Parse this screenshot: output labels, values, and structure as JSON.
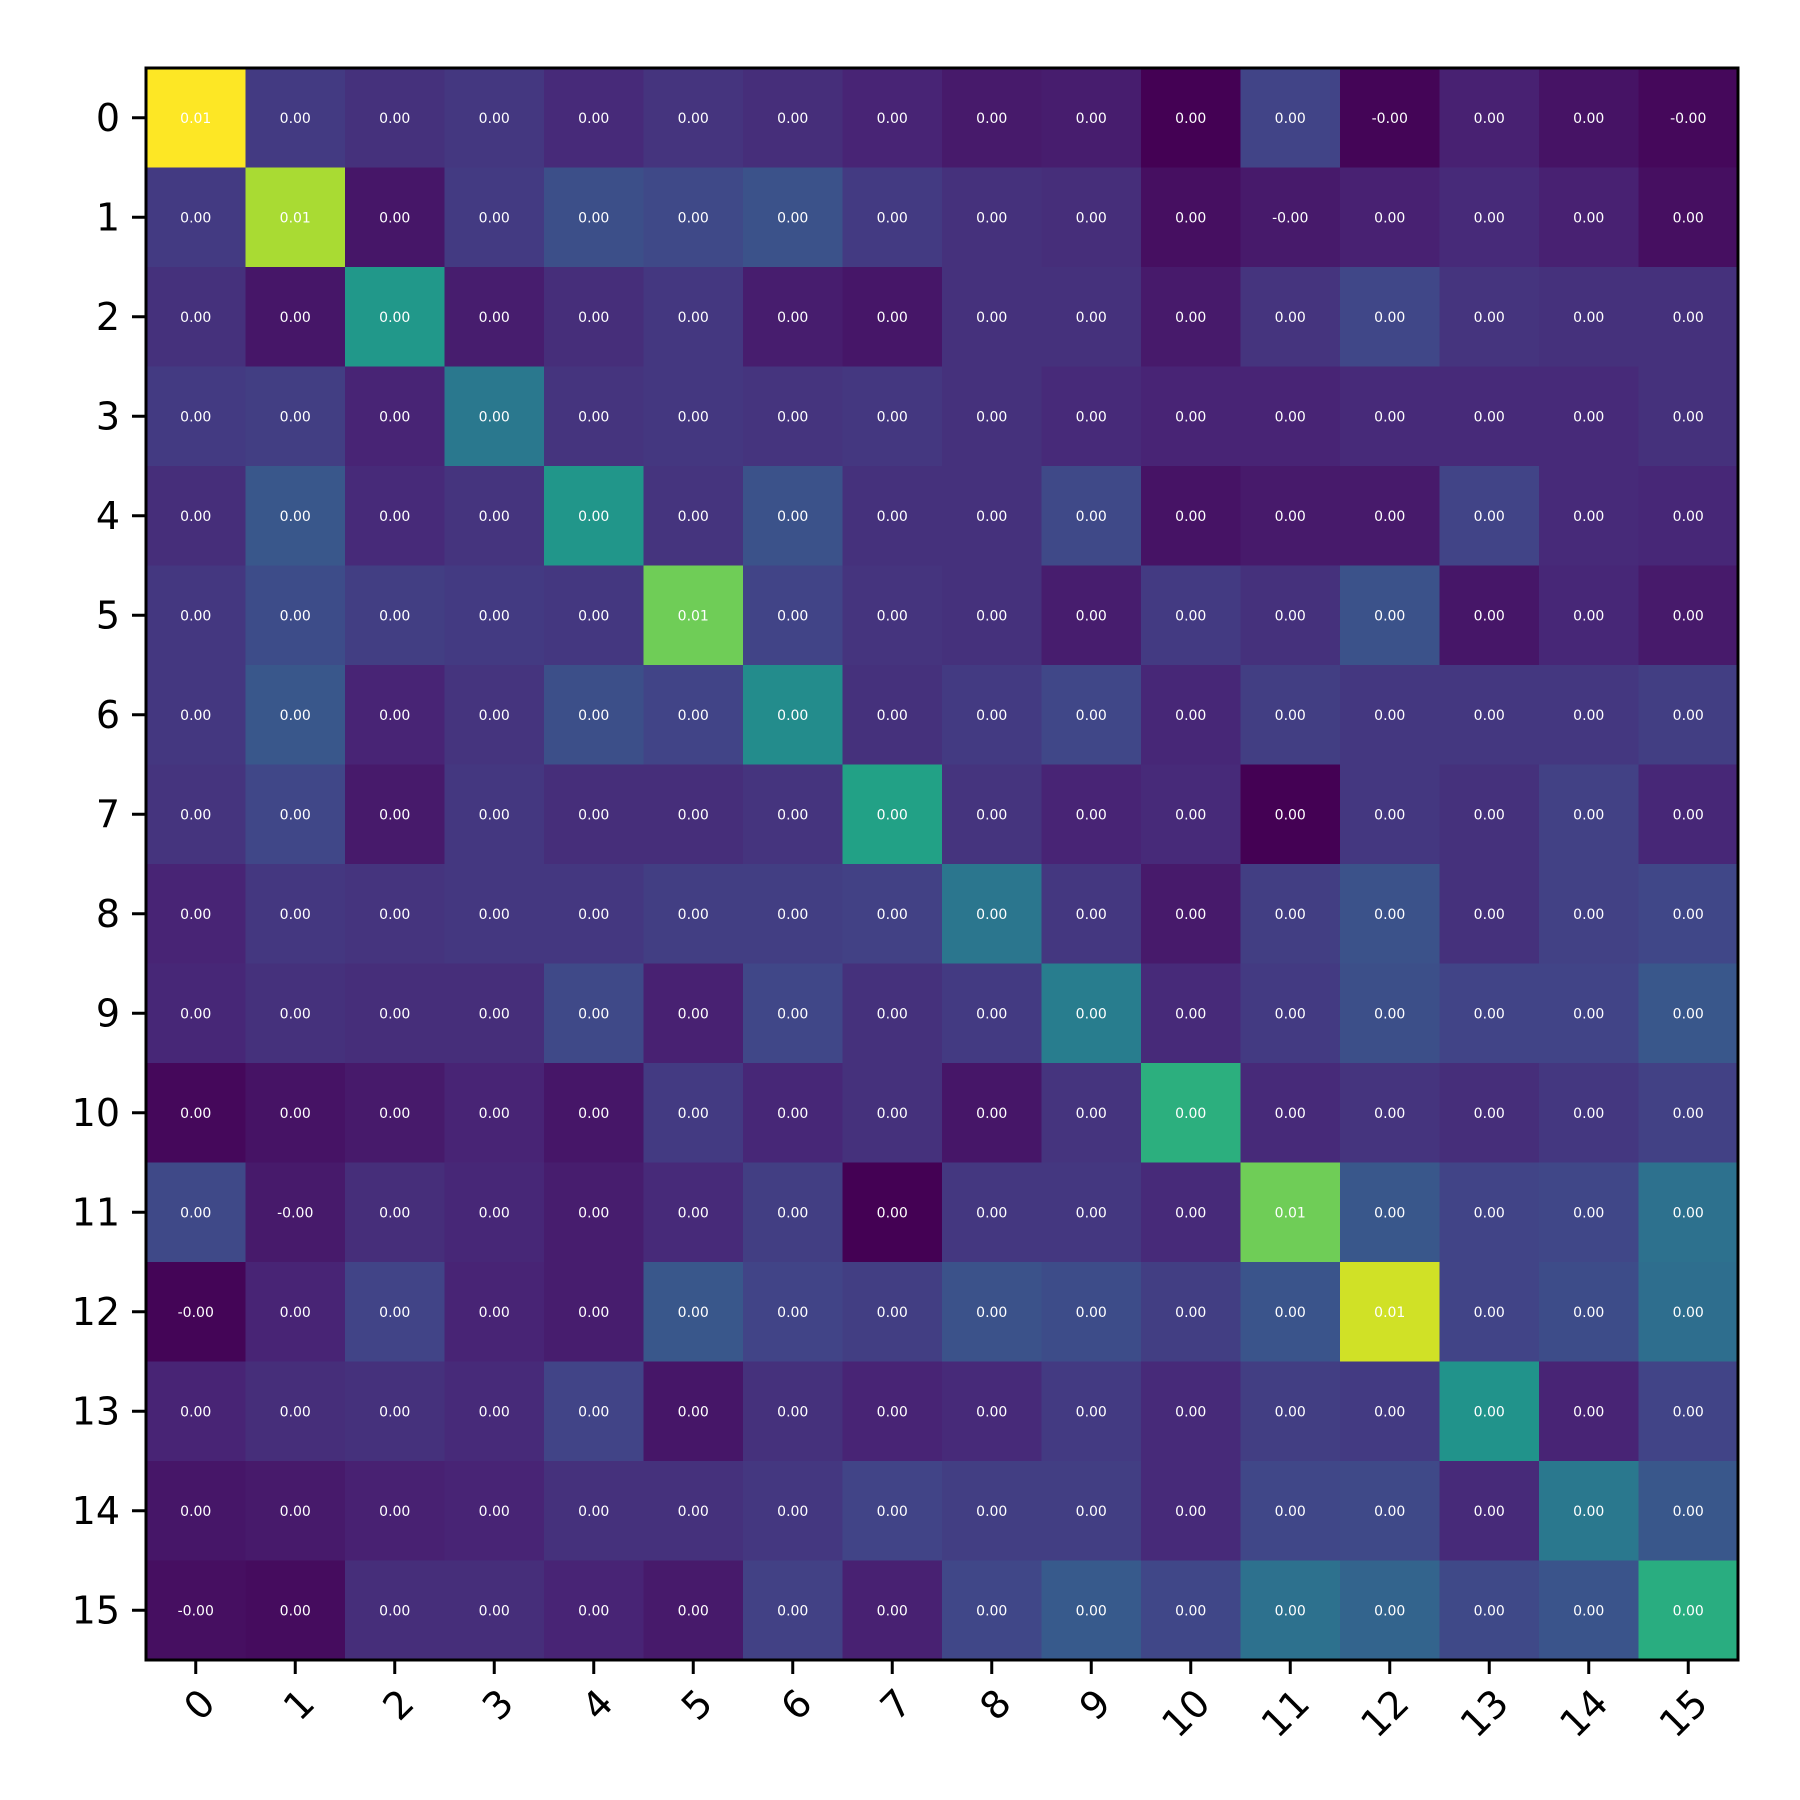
{
  "chart_data": {
    "type": "heatmap",
    "title": "",
    "xlabel": "",
    "ylabel": "",
    "x_tick_labels": [
      "0",
      "1",
      "2",
      "3",
      "4",
      "5",
      "6",
      "7",
      "8",
      "9",
      "10",
      "11",
      "12",
      "13",
      "14",
      "15"
    ],
    "y_tick_labels": [
      "0",
      "1",
      "2",
      "3",
      "4",
      "5",
      "6",
      "7",
      "8",
      "9",
      "10",
      "11",
      "12",
      "13",
      "14",
      "15"
    ],
    "colormap": "viridis",
    "x_tick_rotation_deg": 45,
    "grid": false,
    "colorbar": false,
    "intensity": [
      [
        1.0,
        0.17,
        0.14,
        0.16,
        0.12,
        0.15,
        0.13,
        0.1,
        0.07,
        0.08,
        0.0,
        0.2,
        0.01,
        0.09,
        0.05,
        0.02
      ],
      [
        0.17,
        0.87,
        0.06,
        0.17,
        0.24,
        0.22,
        0.25,
        0.17,
        0.14,
        0.13,
        0.04,
        0.07,
        0.09,
        0.12,
        0.09,
        0.04
      ],
      [
        0.14,
        0.06,
        0.53,
        0.08,
        0.13,
        0.16,
        0.08,
        0.06,
        0.14,
        0.14,
        0.07,
        0.15,
        0.21,
        0.15,
        0.14,
        0.14
      ],
      [
        0.17,
        0.18,
        0.1,
        0.4,
        0.15,
        0.16,
        0.15,
        0.16,
        0.14,
        0.12,
        0.1,
        0.1,
        0.12,
        0.12,
        0.12,
        0.14
      ],
      [
        0.13,
        0.27,
        0.12,
        0.15,
        0.52,
        0.15,
        0.25,
        0.14,
        0.14,
        0.22,
        0.05,
        0.07,
        0.07,
        0.2,
        0.12,
        0.11
      ],
      [
        0.16,
        0.23,
        0.18,
        0.17,
        0.16,
        0.78,
        0.2,
        0.15,
        0.14,
        0.08,
        0.17,
        0.14,
        0.25,
        0.06,
        0.11,
        0.07
      ],
      [
        0.16,
        0.27,
        0.1,
        0.15,
        0.24,
        0.2,
        0.48,
        0.14,
        0.17,
        0.21,
        0.11,
        0.18,
        0.16,
        0.16,
        0.16,
        0.18
      ],
      [
        0.15,
        0.21,
        0.07,
        0.16,
        0.13,
        0.13,
        0.15,
        0.57,
        0.15,
        0.1,
        0.12,
        0.0,
        0.16,
        0.14,
        0.19,
        0.11
      ],
      [
        0.1,
        0.16,
        0.15,
        0.16,
        0.16,
        0.18,
        0.18,
        0.19,
        0.39,
        0.16,
        0.07,
        0.18,
        0.25,
        0.14,
        0.19,
        0.21
      ],
      [
        0.11,
        0.14,
        0.13,
        0.13,
        0.22,
        0.09,
        0.21,
        0.14,
        0.17,
        0.42,
        0.12,
        0.17,
        0.24,
        0.2,
        0.2,
        0.27
      ],
      [
        0.02,
        0.05,
        0.07,
        0.1,
        0.06,
        0.17,
        0.11,
        0.14,
        0.06,
        0.15,
        0.63,
        0.12,
        0.15,
        0.13,
        0.16,
        0.19
      ],
      [
        0.22,
        0.07,
        0.13,
        0.11,
        0.08,
        0.12,
        0.18,
        0.0,
        0.16,
        0.16,
        0.12,
        0.78,
        0.27,
        0.2,
        0.21,
        0.37
      ],
      [
        0.01,
        0.1,
        0.2,
        0.1,
        0.08,
        0.27,
        0.2,
        0.18,
        0.25,
        0.23,
        0.18,
        0.26,
        0.93,
        0.2,
        0.23,
        0.36
      ],
      [
        0.1,
        0.13,
        0.14,
        0.12,
        0.2,
        0.06,
        0.14,
        0.1,
        0.12,
        0.17,
        0.12,
        0.18,
        0.17,
        0.51,
        0.1,
        0.2
      ],
      [
        0.06,
        0.07,
        0.09,
        0.1,
        0.14,
        0.14,
        0.16,
        0.2,
        0.18,
        0.18,
        0.12,
        0.21,
        0.22,
        0.12,
        0.4,
        0.27
      ],
      [
        0.04,
        0.03,
        0.13,
        0.13,
        0.1,
        0.07,
        0.19,
        0.09,
        0.21,
        0.28,
        0.21,
        0.37,
        0.32,
        0.22,
        0.26,
        0.62
      ]
    ],
    "cell_text": [
      [
        "0.01",
        "0.00",
        "0.00",
        "0.00",
        "0.00",
        "0.00",
        "0.00",
        "0.00",
        "0.00",
        "0.00",
        "0.00",
        "0.00",
        "-0.00",
        "0.00",
        "0.00",
        "-0.00"
      ],
      [
        "0.00",
        "0.01",
        "0.00",
        "0.00",
        "0.00",
        "0.00",
        "0.00",
        "0.00",
        "0.00",
        "0.00",
        "0.00",
        "-0.00",
        "0.00",
        "0.00",
        "0.00",
        "0.00"
      ],
      [
        "0.00",
        "0.00",
        "0.00",
        "0.00",
        "0.00",
        "0.00",
        "0.00",
        "0.00",
        "0.00",
        "0.00",
        "0.00",
        "0.00",
        "0.00",
        "0.00",
        "0.00",
        "0.00"
      ],
      [
        "0.00",
        "0.00",
        "0.00",
        "0.00",
        "0.00",
        "0.00",
        "0.00",
        "0.00",
        "0.00",
        "0.00",
        "0.00",
        "0.00",
        "0.00",
        "0.00",
        "0.00",
        "0.00"
      ],
      [
        "0.00",
        "0.00",
        "0.00",
        "0.00",
        "0.00",
        "0.00",
        "0.00",
        "0.00",
        "0.00",
        "0.00",
        "0.00",
        "0.00",
        "0.00",
        "0.00",
        "0.00",
        "0.00"
      ],
      [
        "0.00",
        "0.00",
        "0.00",
        "0.00",
        "0.00",
        "0.01",
        "0.00",
        "0.00",
        "0.00",
        "0.00",
        "0.00",
        "0.00",
        "0.00",
        "0.00",
        "0.00",
        "0.00"
      ],
      [
        "0.00",
        "0.00",
        "0.00",
        "0.00",
        "0.00",
        "0.00",
        "0.00",
        "0.00",
        "0.00",
        "0.00",
        "0.00",
        "0.00",
        "0.00",
        "0.00",
        "0.00",
        "0.00"
      ],
      [
        "0.00",
        "0.00",
        "0.00",
        "0.00",
        "0.00",
        "0.00",
        "0.00",
        "0.00",
        "0.00",
        "0.00",
        "0.00",
        "0.00",
        "0.00",
        "0.00",
        "0.00",
        "0.00"
      ],
      [
        "0.00",
        "0.00",
        "0.00",
        "0.00",
        "0.00",
        "0.00",
        "0.00",
        "0.00",
        "0.00",
        "0.00",
        "0.00",
        "0.00",
        "0.00",
        "0.00",
        "0.00",
        "0.00"
      ],
      [
        "0.00",
        "0.00",
        "0.00",
        "0.00",
        "0.00",
        "0.00",
        "0.00",
        "0.00",
        "0.00",
        "0.00",
        "0.00",
        "0.00",
        "0.00",
        "0.00",
        "0.00",
        "0.00"
      ],
      [
        "0.00",
        "0.00",
        "0.00",
        "0.00",
        "0.00",
        "0.00",
        "0.00",
        "0.00",
        "0.00",
        "0.00",
        "0.00",
        "0.00",
        "0.00",
        "0.00",
        "0.00",
        "0.00"
      ],
      [
        "0.00",
        "-0.00",
        "0.00",
        "0.00",
        "0.00",
        "0.00",
        "0.00",
        "0.00",
        "0.00",
        "0.00",
        "0.00",
        "0.01",
        "0.00",
        "0.00",
        "0.00",
        "0.00"
      ],
      [
        "-0.00",
        "0.00",
        "0.00",
        "0.00",
        "0.00",
        "0.00",
        "0.00",
        "0.00",
        "0.00",
        "0.00",
        "0.00",
        "0.00",
        "0.01",
        "0.00",
        "0.00",
        "0.00"
      ],
      [
        "0.00",
        "0.00",
        "0.00",
        "0.00",
        "0.00",
        "0.00",
        "0.00",
        "0.00",
        "0.00",
        "0.00",
        "0.00",
        "0.00",
        "0.00",
        "0.00",
        "0.00",
        "0.00"
      ],
      [
        "0.00",
        "0.00",
        "0.00",
        "0.00",
        "0.00",
        "0.00",
        "0.00",
        "0.00",
        "0.00",
        "0.00",
        "0.00",
        "0.00",
        "0.00",
        "0.00",
        "0.00",
        "0.00"
      ],
      [
        "-0.00",
        "0.00",
        "0.00",
        "0.00",
        "0.00",
        "0.00",
        "0.00",
        "0.00",
        "0.00",
        "0.00",
        "0.00",
        "0.00",
        "0.00",
        "0.00",
        "0.00",
        "0.00"
      ]
    ]
  }
}
